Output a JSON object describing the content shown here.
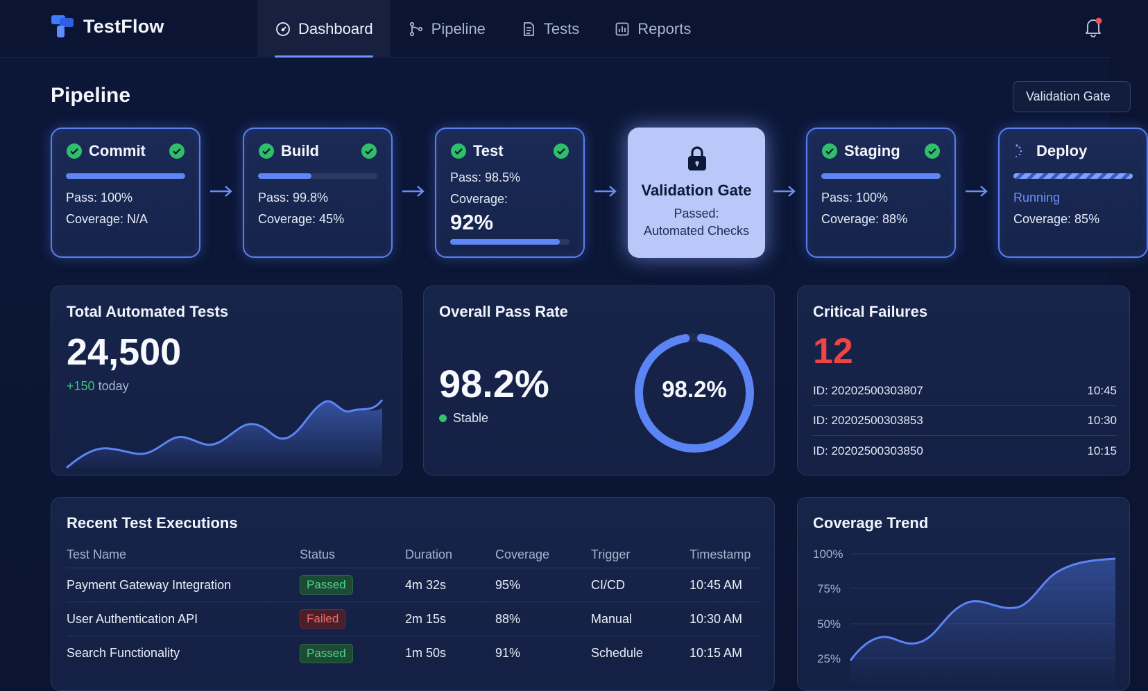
{
  "app": {
    "name": "TestFlow"
  },
  "nav": [
    {
      "label": "Dashboard",
      "icon": "gauge-icon",
      "active": true
    },
    {
      "label": "Pipeline",
      "icon": "branch-icon",
      "active": false
    },
    {
      "label": "Tests",
      "icon": "document-icon",
      "active": false
    },
    {
      "label": "Reports",
      "icon": "bar-chart-icon",
      "active": false
    }
  ],
  "pipeline": {
    "title": "Pipeline",
    "gate_button": "Validation Gate",
    "stages": [
      {
        "name": "Commit",
        "pass": "Pass: 100%",
        "coverage": "Coverage: N/A",
        "progress": 1.0
      },
      {
        "name": "Build",
        "pass": "Pass: 99.8%",
        "coverage": "Coverage: 45%",
        "progress": 0.45
      },
      {
        "name": "Test",
        "pass": "Pass: 98.5%",
        "coverage_label": "Coverage:",
        "coverage_value": "92%",
        "progress": 0.92
      },
      {
        "name": "Staging",
        "pass": "Pass: 100%",
        "coverage": "Coverage: 88%",
        "progress": 1.0
      },
      {
        "name": "Deploy",
        "status": "Running",
        "coverage": "Coverage: 85%",
        "progress": 1.0
      }
    ],
    "gate": {
      "title": "Validation Gate",
      "line1": "Passed:",
      "line2": "Automated Checks"
    }
  },
  "total_tests": {
    "title": "Total Automated Tests",
    "value": "24,500",
    "delta": "+150",
    "delta_suffix": "today"
  },
  "pass_rate": {
    "title": "Overall Pass Rate",
    "value": "98.2%",
    "status": "Stable",
    "donut_label": "98.2%",
    "fraction": 0.982
  },
  "critical": {
    "title": "Critical Failures",
    "count": "12",
    "items": [
      {
        "id": "ID: 20202500303807",
        "time": "10:45"
      },
      {
        "id": "ID: 20202500303853",
        "time": "10:30"
      },
      {
        "id": "ID: 20202500303850",
        "time": "10:15"
      }
    ]
  },
  "executions": {
    "title": "Recent Test Executions",
    "columns": [
      "Test Name",
      "Status",
      "Duration",
      "Coverage",
      "Trigger",
      "Timestamp"
    ],
    "rows": [
      {
        "name": "Payment Gateway Integration",
        "status": "Passed",
        "duration": "4m 32s",
        "coverage": "95%",
        "trigger": "CI/CD",
        "timestamp": "10:45 AM"
      },
      {
        "name": "User Authentication API",
        "status": "Failed",
        "duration": "2m 15s",
        "coverage": "88%",
        "trigger": "Manual",
        "timestamp": "10:30 AM"
      },
      {
        "name": "Search Functionality",
        "status": "Passed",
        "duration": "1m 50s",
        "coverage": "91%",
        "trigger": "Schedule",
        "timestamp": "10:15 AM"
      }
    ]
  },
  "coverage_trend": {
    "title": "Coverage Trend",
    "y_ticks": [
      "100%",
      "75%",
      "50%",
      "25%"
    ]
  },
  "colors": {
    "accent": "#5f86f7",
    "success": "#33c271",
    "danger": "#ee4444",
    "gate": "#b9c8f8"
  }
}
